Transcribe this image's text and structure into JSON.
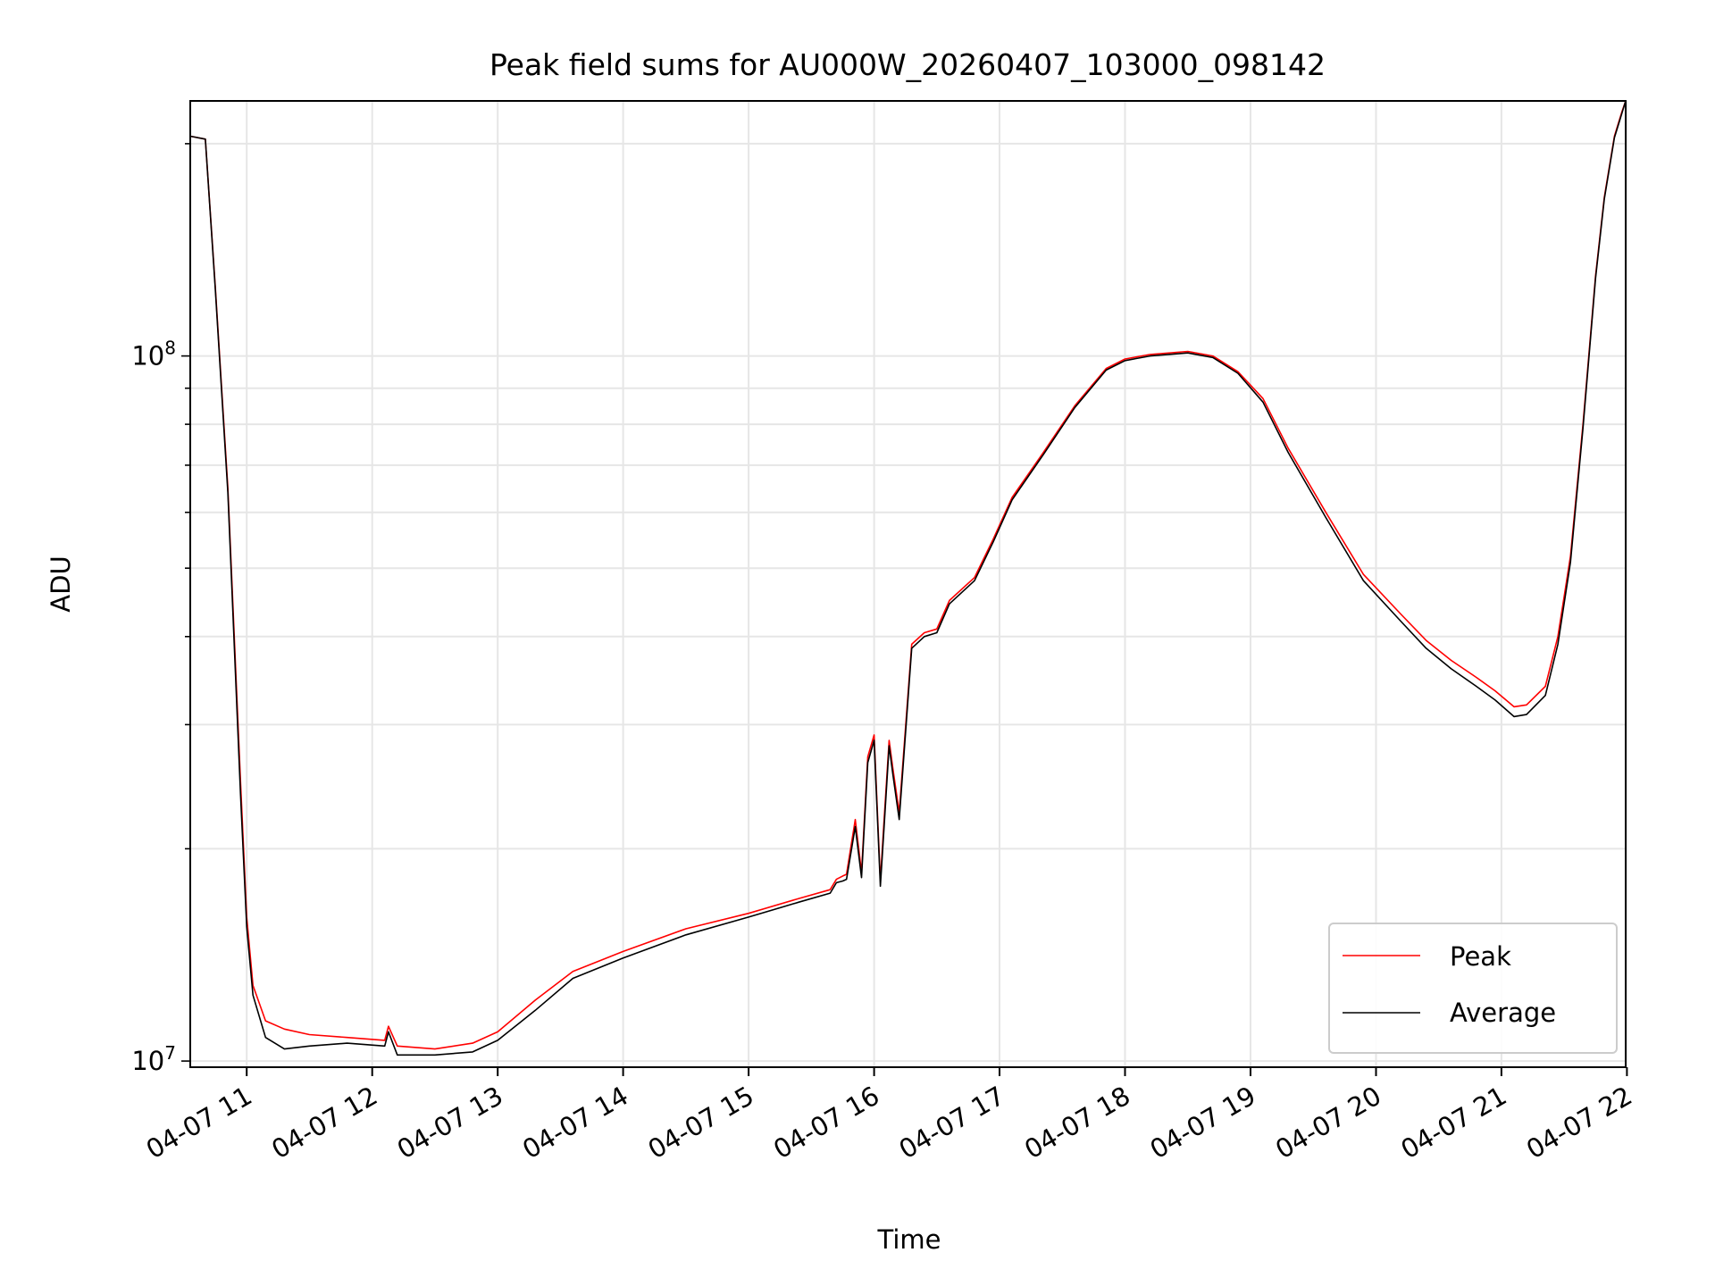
{
  "chart_data": {
    "type": "line",
    "title": "Peak field sums for AU000W_20260407_103000_098142",
    "xlabel": "Time",
    "ylabel": "ADU",
    "yscale": "log",
    "grid": true,
    "legend_position": "lower right",
    "x_unit": "hour of day (2026-04-07)",
    "xlim": [
      10.55,
      21.99
    ],
    "ylim": [
      9800000,
      230000000
    ],
    "x_ticks": [
      {
        "value": 11,
        "label": "04-07 11"
      },
      {
        "value": 12,
        "label": "04-07 12"
      },
      {
        "value": 13,
        "label": "04-07 13"
      },
      {
        "value": 14,
        "label": "04-07 14"
      },
      {
        "value": 15,
        "label": "04-07 15"
      },
      {
        "value": 16,
        "label": "04-07 16"
      },
      {
        "value": 17,
        "label": "04-07 17"
      },
      {
        "value": 18,
        "label": "04-07 18"
      },
      {
        "value": 19,
        "label": "04-07 19"
      },
      {
        "value": 20,
        "label": "04-07 20"
      },
      {
        "value": 21,
        "label": "04-07 21"
      },
      {
        "value": 22,
        "label": "04-07 22"
      }
    ],
    "y_ticks": [
      {
        "value": 10000000,
        "base": "10",
        "exp": "7"
      },
      {
        "value": 100000000,
        "base": "10",
        "exp": "8"
      }
    ],
    "series": [
      {
        "name": "Peak",
        "color": "#ff0000",
        "x": [
          10.55,
          10.67,
          10.75,
          10.85,
          10.95,
          11.0,
          11.05,
          11.15,
          11.3,
          11.5,
          11.8,
          12.1,
          12.13,
          12.2,
          12.5,
          12.8,
          13.0,
          13.3,
          13.6,
          14.0,
          14.5,
          15.0,
          15.4,
          15.65,
          15.7,
          15.75,
          15.78,
          15.85,
          15.9,
          15.95,
          16.0,
          16.05,
          16.08,
          16.12,
          16.15,
          16.2,
          16.3,
          16.4,
          16.5,
          16.6,
          16.8,
          16.95,
          17.1,
          17.35,
          17.6,
          17.85,
          18.0,
          18.2,
          18.5,
          18.7,
          18.9,
          19.1,
          19.3,
          19.6,
          19.9,
          20.2,
          20.4,
          20.6,
          20.8,
          20.95,
          21.1,
          21.2,
          21.35,
          21.45,
          21.55,
          21.65,
          21.75,
          21.82,
          21.9,
          21.96,
          21.99
        ],
        "y": [
          205000000,
          203000000,
          125000000,
          65000000,
          25000000,
          16000000,
          12800000,
          11400000,
          11100000,
          10900000,
          10800000,
          10700000,
          11200000,
          10500000,
          10400000,
          10600000,
          11000000,
          12200000,
          13400000,
          14300000,
          15400000,
          16200000,
          17000000,
          17500000,
          18100000,
          18300000,
          18400000,
          22000000,
          18500000,
          27000000,
          29000000,
          18000000,
          22000000,
          28500000,
          26000000,
          22500000,
          39000000,
          40500000,
          41000000,
          45000000,
          48500000,
          55000000,
          63000000,
          73000000,
          85000000,
          96000000,
          99000000,
          100500000,
          101500000,
          100000000,
          95000000,
          87000000,
          74000000,
          60000000,
          49000000,
          43000000,
          39500000,
          37000000,
          35000000,
          33500000,
          31800000,
          32000000,
          34000000,
          40000000,
          52000000,
          80000000,
          130000000,
          168000000,
          205000000,
          222000000,
          230000000
        ]
      },
      {
        "name": "Average",
        "color": "#000000",
        "x": [
          10.55,
          10.67,
          10.75,
          10.85,
          10.95,
          11.0,
          11.05,
          11.15,
          11.3,
          11.5,
          11.8,
          12.1,
          12.13,
          12.2,
          12.5,
          12.8,
          13.0,
          13.3,
          13.6,
          14.0,
          14.5,
          15.0,
          15.4,
          15.65,
          15.7,
          15.75,
          15.78,
          15.85,
          15.9,
          15.95,
          16.0,
          16.05,
          16.08,
          16.12,
          16.15,
          16.2,
          16.3,
          16.4,
          16.5,
          16.6,
          16.8,
          16.95,
          17.1,
          17.35,
          17.6,
          17.85,
          18.0,
          18.2,
          18.5,
          18.7,
          18.9,
          19.1,
          19.3,
          19.6,
          19.9,
          20.2,
          20.4,
          20.6,
          20.8,
          20.95,
          21.1,
          21.2,
          21.35,
          21.45,
          21.55,
          21.65,
          21.75,
          21.82,
          21.9,
          21.96,
          21.99
        ],
        "y": [
          205000000,
          203000000,
          124000000,
          64000000,
          24000000,
          15500000,
          12400000,
          10800000,
          10400000,
          10500000,
          10600000,
          10500000,
          11000000,
          10200000,
          10200000,
          10300000,
          10700000,
          11800000,
          13100000,
          14000000,
          15100000,
          16000000,
          16800000,
          17300000,
          17900000,
          18000000,
          18100000,
          21500000,
          18200000,
          26500000,
          28500000,
          17700000,
          21500000,
          28000000,
          25500000,
          22000000,
          38500000,
          40000000,
          40500000,
          44500000,
          48000000,
          54500000,
          62500000,
          72500000,
          84500000,
          95500000,
          98500000,
          100000000,
          101000000,
          99500000,
          94500000,
          86000000,
          73000000,
          59000000,
          48000000,
          42000000,
          38500000,
          36000000,
          34000000,
          32500000,
          30800000,
          31000000,
          33000000,
          39000000,
          51000000,
          79000000,
          129000000,
          167000000,
          204000000,
          221000000,
          230000000
        ]
      }
    ]
  }
}
